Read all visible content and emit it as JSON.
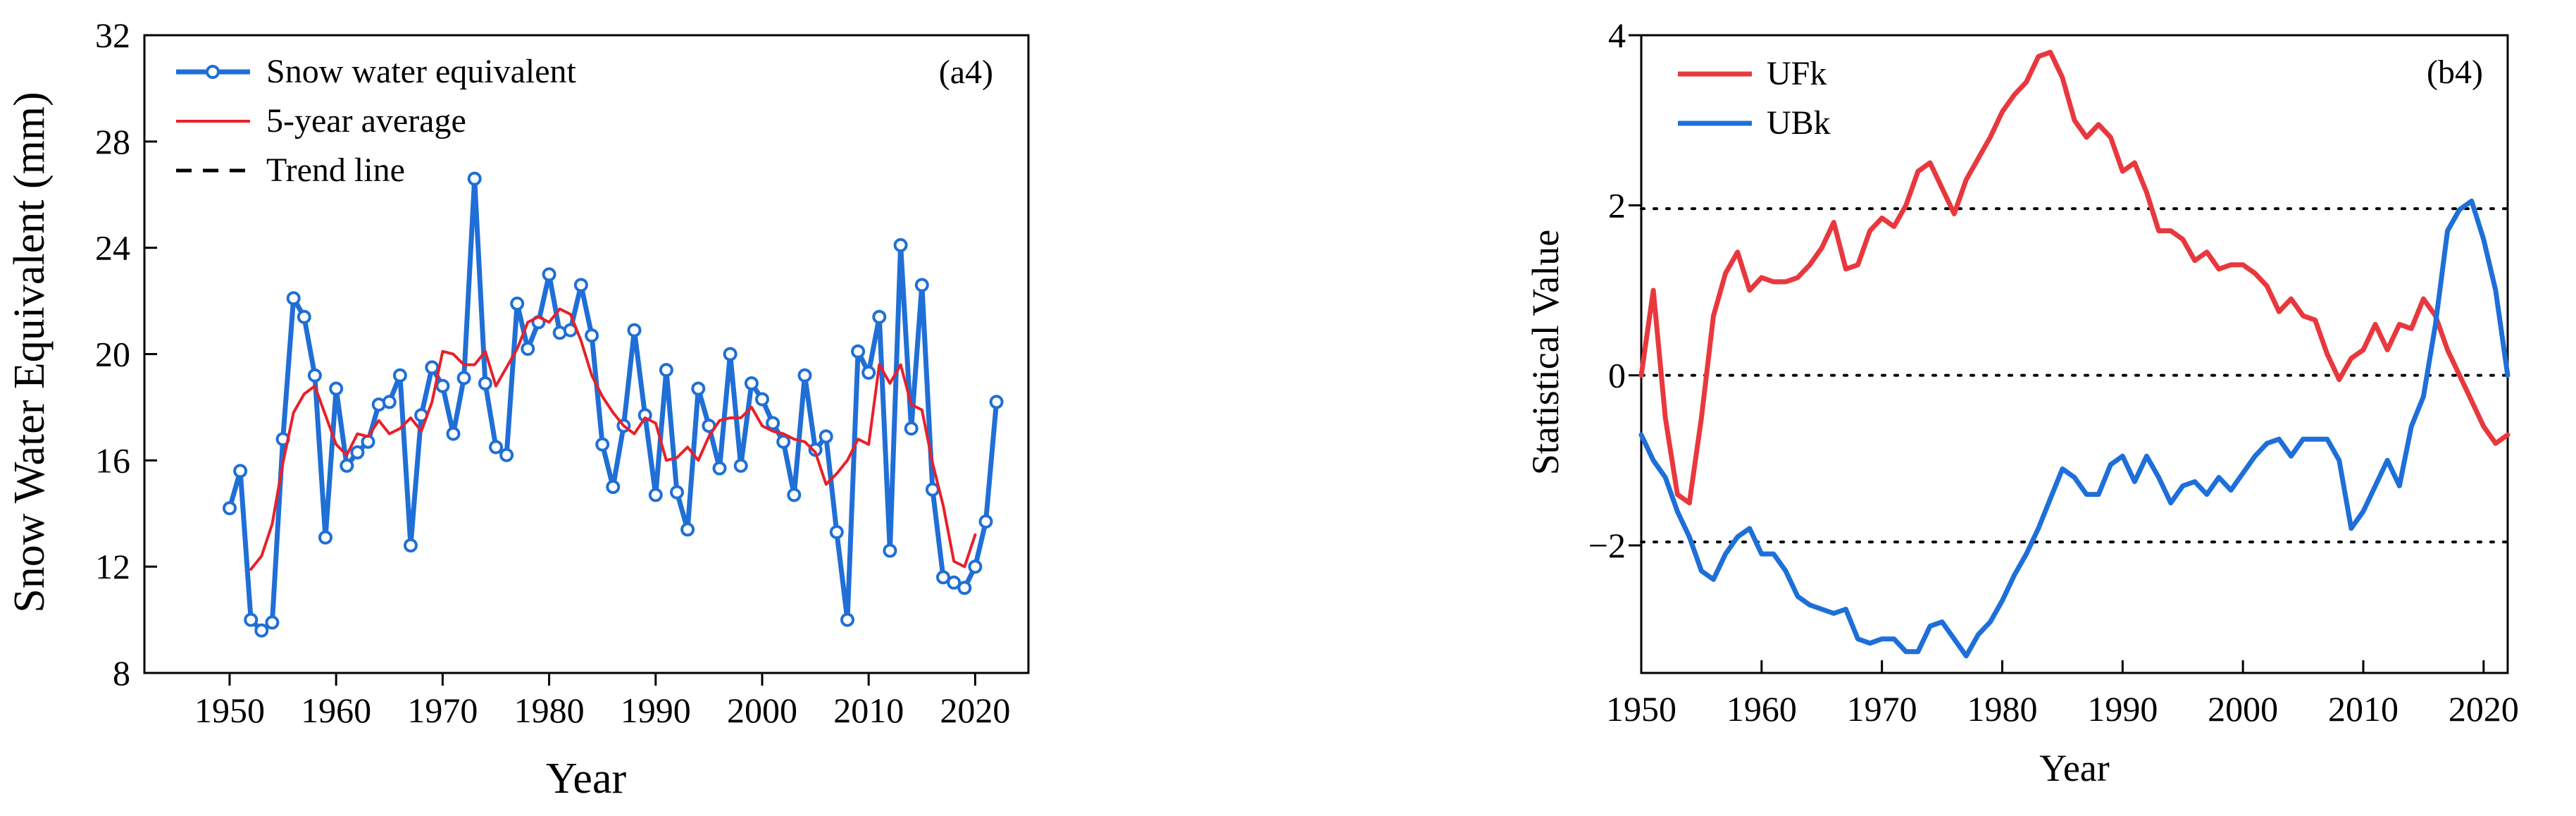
{
  "chart_data": [
    {
      "type": "line",
      "panel_label": "(a4)",
      "xlabel": "Year",
      "ylabel": "Snow Water Equivalent (mm)",
      "xlim": [
        1942,
        2025
      ],
      "ylim": [
        8,
        32
      ],
      "xticks": [
        1950,
        1960,
        1970,
        1980,
        1990,
        2000,
        2010,
        2020
      ],
      "yticks": [
        8,
        12,
        16,
        20,
        24,
        28,
        32
      ],
      "legend": [
        "Snow water equivalent",
        "5-year average",
        "Trend line"
      ],
      "series": [
        {
          "name": "Snow water equivalent",
          "color": "#1f6fd6",
          "marker": "circle",
          "x": [
            1950,
            1951,
            1952,
            1953,
            1954,
            1955,
            1956,
            1957,
            1958,
            1959,
            1960,
            1961,
            1962,
            1963,
            1964,
            1965,
            1966,
            1967,
            1968,
            1969,
            1970,
            1971,
            1972,
            1973,
            1974,
            1975,
            1976,
            1977,
            1978,
            1979,
            1980,
            1981,
            1982,
            1983,
            1984,
            1985,
            1986,
            1987,
            1988,
            1989,
            1990,
            1991,
            1992,
            1993,
            1994,
            1995,
            1996,
            1997,
            1998,
            1999,
            2000,
            2001,
            2002,
            2003,
            2004,
            2005,
            2006,
            2007,
            2008,
            2009,
            2010,
            2011,
            2012,
            2013,
            2014,
            2015,
            2016,
            2017,
            2018,
            2019,
            2020,
            2021,
            2022
          ],
          "values": [
            14.2,
            15.6,
            10.0,
            9.6,
            9.9,
            16.8,
            22.1,
            21.4,
            19.2,
            13.1,
            18.7,
            15.8,
            16.3,
            16.7,
            18.1,
            18.2,
            19.2,
            12.8,
            17.7,
            19.5,
            18.8,
            17.0,
            19.1,
            26.6,
            18.9,
            16.5,
            16.2,
            21.9,
            20.2,
            21.2,
            23.0,
            20.8,
            20.9,
            22.6,
            20.7,
            16.6,
            15.0,
            17.3,
            20.9,
            17.7,
            14.7,
            19.4,
            14.8,
            13.4,
            18.7,
            17.3,
            15.7,
            20.0,
            15.8,
            18.9,
            18.3,
            17.4,
            16.7,
            14.7,
            19.2,
            16.4,
            16.9,
            13.3,
            10.0,
            20.1,
            19.3,
            21.4,
            12.6,
            24.1,
            17.2,
            22.6,
            14.9,
            11.6,
            11.4,
            11.2,
            12.0,
            13.7,
            18.2
          ]
        },
        {
          "name": "5-year average",
          "color": "#e8202a",
          "x": [
            1952,
            1953,
            1954,
            1955,
            1956,
            1957,
            1958,
            1959,
            1960,
            1961,
            1962,
            1963,
            1964,
            1965,
            1966,
            1967,
            1968,
            1969,
            1970,
            1971,
            1972,
            1973,
            1974,
            1975,
            1976,
            1977,
            1978,
            1979,
            1980,
            1981,
            1982,
            1983,
            1984,
            1985,
            1986,
            1987,
            1988,
            1989,
            1990,
            1991,
            1992,
            1993,
            1994,
            1995,
            1996,
            1997,
            1998,
            1999,
            2000,
            2001,
            2002,
            2003,
            2004,
            2005,
            2006,
            2007,
            2008,
            2009,
            2010,
            2011,
            2012,
            2013,
            2014,
            2015,
            2016,
            2017,
            2018,
            2019,
            2020
          ],
          "values": [
            11.9,
            12.4,
            13.6,
            15.9,
            17.8,
            18.5,
            18.8,
            17.7,
            16.6,
            16.2,
            17.0,
            16.9,
            17.5,
            17.0,
            17.2,
            17.6,
            17.1,
            18.2,
            20.1,
            20.0,
            19.6,
            19.6,
            20.1,
            18.8,
            19.5,
            20.2,
            21.2,
            21.4,
            21.2,
            21.7,
            21.5,
            20.5,
            19.2,
            18.4,
            17.8,
            17.3,
            17.0,
            17.6,
            17.4,
            16.0,
            16.1,
            16.5,
            16.0,
            16.9,
            17.5,
            17.6,
            17.6,
            18.0,
            17.3,
            17.1,
            17.0,
            16.8,
            16.7,
            16.3,
            15.1,
            15.5,
            16.0,
            16.8,
            16.6,
            19.6,
            18.9,
            19.6,
            18.1,
            17.9,
            15.9,
            14.3,
            12.2,
            12.0,
            13.2
          ]
        }
      ]
    },
    {
      "type": "line",
      "panel_label": "(b4)",
      "xlabel": "Year",
      "ylabel": "Statistical Value",
      "xlim": [
        1950,
        2022
      ],
      "ylim": [
        -3.5,
        4
      ],
      "xticks": [
        1950,
        1960,
        1970,
        1980,
        1990,
        2000,
        2010,
        2020
      ],
      "yticks": [
        -2,
        0,
        2,
        4
      ],
      "reference_lines": [
        -1.96,
        0,
        1.96
      ],
      "legend": [
        "UFk",
        "UBk"
      ],
      "series": [
        {
          "name": "UFk",
          "color": "#e8383e",
          "x": [
            1950,
            1951,
            1952,
            1953,
            1954,
            1955,
            1956,
            1957,
            1958,
            1959,
            1960,
            1961,
            1962,
            1963,
            1964,
            1965,
            1966,
            1967,
            1968,
            1969,
            1970,
            1971,
            1972,
            1973,
            1974,
            1975,
            1976,
            1977,
            1978,
            1979,
            1980,
            1981,
            1982,
            1983,
            1984,
            1985,
            1986,
            1987,
            1988,
            1989,
            1990,
            1991,
            1992,
            1993,
            1994,
            1995,
            1996,
            1997,
            1998,
            1999,
            2000,
            2001,
            2002,
            2003,
            2004,
            2005,
            2006,
            2007,
            2008,
            2009,
            2010,
            2011,
            2012,
            2013,
            2014,
            2015,
            2016,
            2017,
            2018,
            2019,
            2020,
            2021,
            2022
          ],
          "values": [
            0.0,
            1.0,
            -0.5,
            -1.4,
            -1.5,
            -0.5,
            0.7,
            1.2,
            1.45,
            1.0,
            1.15,
            1.1,
            1.1,
            1.15,
            1.3,
            1.5,
            1.8,
            1.25,
            1.3,
            1.7,
            1.85,
            1.75,
            2.0,
            2.4,
            2.5,
            2.2,
            1.9,
            2.3,
            2.55,
            2.8,
            3.1,
            3.3,
            3.45,
            3.75,
            3.8,
            3.5,
            3.0,
            2.8,
            2.95,
            2.8,
            2.4,
            2.5,
            2.15,
            1.7,
            1.7,
            1.6,
            1.35,
            1.45,
            1.25,
            1.3,
            1.3,
            1.2,
            1.05,
            0.75,
            0.9,
            0.7,
            0.65,
            0.25,
            -0.05,
            0.2,
            0.3,
            0.6,
            0.3,
            0.6,
            0.55,
            0.9,
            0.7,
            0.3,
            0.0,
            -0.3,
            -0.6,
            -0.8,
            -0.7
          ]
        },
        {
          "name": "UBk",
          "color": "#1e6fd8",
          "x": [
            1950,
            1951,
            1952,
            1953,
            1954,
            1955,
            1956,
            1957,
            1958,
            1959,
            1960,
            1961,
            1962,
            1963,
            1964,
            1965,
            1966,
            1967,
            1968,
            1969,
            1970,
            1971,
            1972,
            1973,
            1974,
            1975,
            1976,
            1977,
            1978,
            1979,
            1980,
            1981,
            1982,
            1983,
            1984,
            1985,
            1986,
            1987,
            1988,
            1989,
            1990,
            1991,
            1992,
            1993,
            1994,
            1995,
            1996,
            1997,
            1998,
            1999,
            2000,
            2001,
            2002,
            2003,
            2004,
            2005,
            2006,
            2007,
            2008,
            2009,
            2010,
            2011,
            2012,
            2013,
            2014,
            2015,
            2016,
            2017,
            2018,
            2019,
            2020,
            2021,
            2022
          ],
          "values": [
            -0.7,
            -1.0,
            -1.2,
            -1.6,
            -1.9,
            -2.3,
            -2.4,
            -2.1,
            -1.9,
            -1.8,
            -2.1,
            -2.1,
            -2.3,
            -2.6,
            -2.7,
            -2.75,
            -2.8,
            -2.75,
            -3.1,
            -3.15,
            -3.1,
            -3.1,
            -3.25,
            -3.25,
            -2.95,
            -2.9,
            -3.1,
            -3.3,
            -3.05,
            -2.9,
            -2.65,
            -2.35,
            -2.1,
            -1.8,
            -1.45,
            -1.1,
            -1.2,
            -1.4,
            -1.4,
            -1.05,
            -0.95,
            -1.25,
            -0.95,
            -1.2,
            -1.5,
            -1.3,
            -1.25,
            -1.4,
            -1.2,
            -1.35,
            -1.15,
            -0.95,
            -0.8,
            -0.75,
            -0.95,
            -0.75,
            -0.75,
            -0.75,
            -1.0,
            -1.8,
            -1.6,
            -1.3,
            -1.0,
            -1.3,
            -0.6,
            -0.25,
            0.6,
            1.7,
            1.95,
            2.05,
            1.6,
            1.0,
            0.0
          ]
        }
      ]
    }
  ]
}
